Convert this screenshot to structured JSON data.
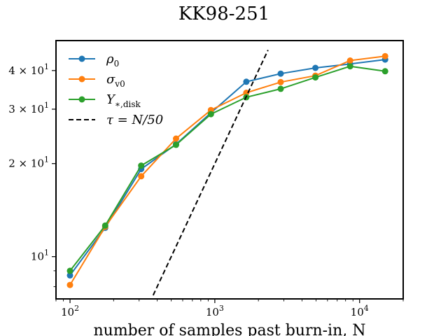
{
  "chart_data": {
    "type": "line",
    "title": "KK98-251",
    "xlabel": "number of samples past burn-in, N",
    "ylabel": "",
    "xscale": "log",
    "yscale": "log",
    "xlim": [
      80,
      20000
    ],
    "ylim": [
      7.3,
      50
    ],
    "grid": false,
    "legend_position": "top-left",
    "x_ticks": [
      {
        "value": 100,
        "base": "10",
        "exp": "2"
      },
      {
        "value": 1000,
        "base": "10",
        "exp": "3"
      },
      {
        "value": 10000,
        "base": "10",
        "exp": "4"
      }
    ],
    "y_ticks": [
      {
        "value": 10,
        "mant": "",
        "base": "10",
        "exp": "1"
      },
      {
        "value": 20,
        "mant": "2 × ",
        "base": "10",
        "exp": "1"
      },
      {
        "value": 30,
        "mant": "3 × ",
        "base": "10",
        "exp": "1"
      },
      {
        "value": 40,
        "mant": "4 × ",
        "base": "10",
        "exp": "1"
      }
    ],
    "x": [
      100,
      175,
      310,
      540,
      940,
      1650,
      2850,
      4950,
      8600,
      15000
    ],
    "series": [
      {
        "name": "ρ0",
        "legend_main": "ρ",
        "legend_sub": "0",
        "color": "#1f77b4",
        "style": "solid-marker",
        "values": [
          8.7,
          12.4,
          19.2,
          23.1,
          29.2,
          36.8,
          39.1,
          40.8,
          42.0,
          43.4
        ]
      },
      {
        "name": "σv0",
        "legend_main": "σ",
        "legend_sub": "v0",
        "color": "#ff7f0e",
        "style": "solid-marker",
        "values": [
          8.1,
          12.5,
          18.2,
          24.1,
          29.8,
          33.9,
          36.7,
          38.5,
          43.1,
          44.5
        ]
      },
      {
        "name": "Υ*,disk",
        "legend_main": "Υ",
        "legend_sub": "∗,disk",
        "color": "#2ca02c",
        "style": "solid-marker",
        "values": [
          9.0,
          12.6,
          19.7,
          23.0,
          28.9,
          32.8,
          34.9,
          38.0,
          41.3,
          39.8
        ]
      },
      {
        "name": "τ = N/50",
        "legend_main": "τ = N/50",
        "legend_sub": "",
        "color": "#000000",
        "style": "dashed",
        "x": [
          375,
          2330
        ],
        "values": [
          7.5,
          46.6
        ]
      }
    ]
  }
}
